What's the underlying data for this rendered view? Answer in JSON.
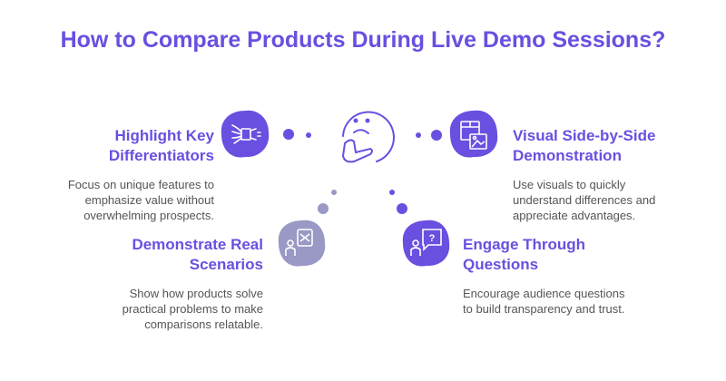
{
  "title": "How to Compare Products During Live Demo Sessions?",
  "colors": {
    "accent": "#6a4fe0",
    "muted": "#9a98c4",
    "text": "#555555"
  },
  "center_icon": "thinking-face-icon",
  "items": [
    {
      "heading_lines": [
        "Highlight Key",
        "Differentiators"
      ],
      "description_lines": [
        "Focus on unique features to",
        "emphasize value without",
        "overwhelming prospects."
      ],
      "icon": "megaphone-icon",
      "color": "#6a4fe0"
    },
    {
      "heading_lines": [
        "Visual Side-by-Side",
        "Demonstration"
      ],
      "description_lines": [
        "Use visuals to quickly",
        "understand differences and",
        "appreciate advantages."
      ],
      "icon": "product-image-icon",
      "color": "#6a4fe0"
    },
    {
      "heading_lines": [
        "Demonstrate Real",
        "Scenarios"
      ],
      "description_lines": [
        "Show how products solve",
        "practical problems to make",
        "comparisons relatable."
      ],
      "icon": "person-box-icon",
      "color": "#9a98c4"
    },
    {
      "heading_lines": [
        "Engage Through",
        "Questions"
      ],
      "description_lines": [
        "Encourage audience questions",
        "to build transparency and trust."
      ],
      "icon": "person-question-icon",
      "color": "#6a4fe0"
    }
  ]
}
